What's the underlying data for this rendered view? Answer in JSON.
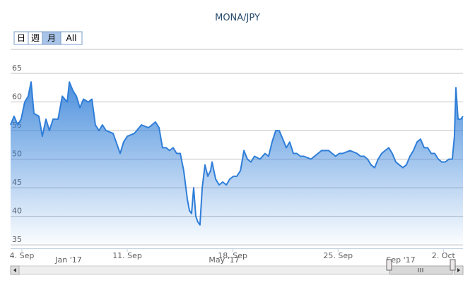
{
  "chart_data": {
    "type": "area",
    "title": "MONA/JPY",
    "range_buttons": [
      "日",
      "週",
      "月",
      "All"
    ],
    "selected_button": "月",
    "series": [
      {
        "name": "MONA/JPY",
        "color": "#2f7ed8",
        "x": [
          3.25,
          3.48,
          3.72,
          3.95,
          4.19,
          4.42,
          4.61,
          4.8,
          5.13,
          5.36,
          5.6,
          5.83,
          6.07,
          6.4,
          6.68,
          7.01,
          7.15,
          7.38,
          7.62,
          7.85,
          8.09,
          8.41,
          8.65,
          8.88,
          9.12,
          9.35,
          9.59,
          10.06,
          10.53,
          10.76,
          11.0,
          11.47,
          11.94,
          12.41,
          12.64,
          12.87,
          13.11,
          13.34,
          13.58,
          13.81,
          14.05,
          14.28,
          14.52,
          14.75,
          14.99,
          15.13,
          15.27,
          15.41,
          15.55,
          15.69,
          15.83,
          15.98,
          16.16,
          16.35,
          16.54,
          16.63,
          16.87,
          17.1,
          17.34,
          17.58,
          17.81,
          18.05,
          18.28,
          18.52,
          18.75,
          18.98,
          19.22,
          19.45,
          19.82,
          20.15,
          20.39,
          20.62,
          20.86,
          21.09,
          21.33,
          21.56,
          21.79,
          22.03,
          22.26,
          22.5,
          22.73,
          23.2,
          23.67,
          23.91,
          24.38,
          24.61,
          24.84,
          25.08,
          25.31,
          25.79,
          26.26,
          26.49,
          26.73,
          26.96,
          27.19,
          27.43,
          27.66,
          27.9,
          28.13,
          28.37,
          28.6,
          28.84,
          29.07,
          29.31,
          29.54,
          29.78,
          30.01,
          30.25,
          30.48,
          30.72,
          30.95,
          31.19,
          31.42,
          31.66,
          31.89,
          32.12,
          32.36,
          32.59,
          32.73,
          32.83,
          32.97,
          33.16,
          33.3
        ],
        "values": [
          56,
          57.5,
          56,
          57,
          60,
          61,
          63.5,
          58,
          57.5,
          54,
          57,
          55,
          57,
          57,
          61,
          60,
          63.5,
          62,
          61,
          59,
          60.5,
          60,
          60.5,
          56,
          55,
          56,
          55,
          54.5,
          51,
          53,
          54,
          54.5,
          56,
          55.5,
          56,
          56.5,
          55.5,
          52,
          52,
          51.5,
          52,
          51,
          51,
          48,
          43,
          41,
          40.5,
          45,
          40,
          39,
          38.5,
          45,
          49,
          47,
          48,
          49.5,
          46.5,
          45.5,
          46,
          45.5,
          46.5,
          47,
          47,
          48,
          51.5,
          50,
          49.5,
          50.5,
          50,
          51,
          50.5,
          53,
          55,
          55,
          53.5,
          52,
          53,
          51,
          51,
          50.5,
          50.5,
          50,
          51,
          51.5,
          51.5,
          51,
          50.5,
          51,
          51,
          51.5,
          51,
          50.5,
          50.5,
          50,
          49,
          48.5,
          50,
          51,
          51.5,
          52,
          51,
          49.5,
          49,
          48.5,
          49,
          50.5,
          51.5,
          53,
          53.5,
          52,
          52,
          51,
          51,
          50,
          49.5,
          49.5,
          50,
          50,
          54,
          62.5,
          57,
          57,
          57.5
        ]
      }
    ],
    "xlim": [
      3.25,
      33.3
    ],
    "xticks": [
      {
        "value": 4,
        "label": "4. Sep"
      },
      {
        "value": 11,
        "label": "11. Sep"
      },
      {
        "value": 18,
        "label": "18. Sep"
      },
      {
        "value": 25,
        "label": "25. Sep"
      },
      {
        "value": 32,
        "label": "2. Oct"
      }
    ],
    "ylim": [
      34.4,
      69.2
    ],
    "yticks": [
      35,
      40,
      45,
      50,
      55,
      60,
      65
    ],
    "grid": true,
    "navigator_labels": [
      "Jan '17",
      "May '17",
      "Sep '17"
    ]
  }
}
